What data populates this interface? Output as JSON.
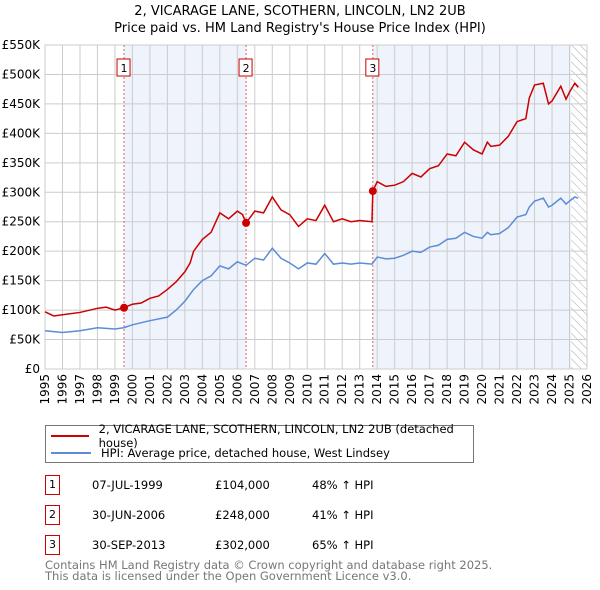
{
  "chart_data": {
    "type": "line",
    "title": "2, VICARAGE LANE, SCOTHERN, LINCOLN, LN2 2UB",
    "subtitle": "Price paid vs. HM Land Registry's House Price Index (HPI)",
    "xlim": [
      1995,
      2026
    ],
    "ylim": [
      0,
      550000
    ],
    "x_ticks": [
      "1995",
      "1996",
      "1997",
      "1998",
      "1999",
      "2000",
      "2001",
      "2002",
      "2003",
      "2004",
      "2005",
      "2006",
      "2007",
      "2008",
      "2009",
      "2010",
      "2011",
      "2012",
      "2013",
      "2014",
      "2015",
      "2016",
      "2017",
      "2018",
      "2019",
      "2020",
      "2021",
      "2022",
      "2023",
      "2024",
      "2025",
      "2026"
    ],
    "y_ticks": [
      {
        "v": 0,
        "l": "£0"
      },
      {
        "v": 50000,
        "l": "£50K"
      },
      {
        "v": 100000,
        "l": "£100K"
      },
      {
        "v": 150000,
        "l": "£150K"
      },
      {
        "v": 200000,
        "l": "£200K"
      },
      {
        "v": 250000,
        "l": "£250K"
      },
      {
        "v": 300000,
        "l": "£300K"
      },
      {
        "v": 350000,
        "l": "£350K"
      },
      {
        "v": 400000,
        "l": "£400K"
      },
      {
        "v": 450000,
        "l": "£450K"
      },
      {
        "v": 500000,
        "l": "£500K"
      },
      {
        "v": 550000,
        "l": "£550K"
      }
    ],
    "shaded_ranges": [
      [
        1999.52,
        2006.5
      ],
      [
        2013.75,
        2025.1
      ]
    ],
    "hatched_from": 2025.1,
    "series": [
      {
        "name": "2, VICARAGE LANE, SCOTHERN, LINCOLN, LN2 2UB (detached house)",
        "color": "#cc0000",
        "x": [
          1995,
          1995.5,
          1996,
          1997,
          1998,
          1998.5,
          1999,
          1999.52,
          2000,
          2000.5,
          2001,
          2001.5,
          2002,
          2002.5,
          2003,
          2003.3,
          2003.5,
          2004,
          2004.5,
          2005,
          2005.5,
          2006,
          2006.3,
          2006.5,
          2007,
          2007.5,
          2008,
          2008.5,
          2009,
          2009.5,
          2010,
          2010.5,
          2011,
          2011.5,
          2012,
          2012.5,
          2013,
          2013.7,
          2013.75,
          2014,
          2014.5,
          2015,
          2015.5,
          2016,
          2016.5,
          2017,
          2017.5,
          2018,
          2018.5,
          2019,
          2019.5,
          2020,
          2020.3,
          2020.5,
          2021,
          2021.5,
          2022,
          2022.5,
          2022.7,
          2023,
          2023.5,
          2023.8,
          2024,
          2024.5,
          2024.8,
          2025,
          2025.3,
          2025.5
        ],
        "y": [
          97000,
          90000,
          92000,
          96000,
          103000,
          105000,
          100000,
          104000,
          110000,
          112000,
          120000,
          124000,
          135000,
          148000,
          165000,
          180000,
          200000,
          220000,
          232000,
          265000,
          255000,
          268000,
          262000,
          248000,
          268000,
          265000,
          292000,
          270000,
          262000,
          242000,
          255000,
          252000,
          278000,
          250000,
          255000,
          250000,
          252000,
          250000,
          302000,
          318000,
          310000,
          312000,
          318000,
          332000,
          326000,
          340000,
          345000,
          365000,
          362000,
          385000,
          372000,
          365000,
          385000,
          378000,
          380000,
          395000,
          420000,
          425000,
          460000,
          482000,
          485000,
          450000,
          455000,
          480000,
          458000,
          470000,
          485000,
          478000
        ]
      },
      {
        "name": "HPI: Average price, detached house, West Lindsey",
        "color": "#5b8dd6",
        "x": [
          1995,
          1996,
          1997,
          1998,
          1999,
          1999.5,
          2000,
          2001,
          2002,
          2002.5,
          2003,
          2003.5,
          2004,
          2004.5,
          2005,
          2005.5,
          2006,
          2006.5,
          2007,
          2007.5,
          2008,
          2008.5,
          2009,
          2009.5,
          2010,
          2010.5,
          2011,
          2011.5,
          2012,
          2012.5,
          2013,
          2013.7,
          2014,
          2014.5,
          2015,
          2015.5,
          2016,
          2016.5,
          2017,
          2017.5,
          2018,
          2018.5,
          2019,
          2019.5,
          2020,
          2020.3,
          2020.5,
          2021,
          2021.5,
          2022,
          2022.5,
          2022.7,
          2023,
          2023.5,
          2023.8,
          2024,
          2024.5,
          2024.8,
          2025,
          2025.3,
          2025.5
        ],
        "y": [
          65000,
          62000,
          65000,
          70000,
          68000,
          70000,
          75000,
          82000,
          88000,
          100000,
          115000,
          135000,
          150000,
          158000,
          175000,
          170000,
          182000,
          176000,
          188000,
          185000,
          205000,
          188000,
          180000,
          170000,
          180000,
          178000,
          196000,
          178000,
          180000,
          178000,
          180000,
          178000,
          190000,
          187000,
          188000,
          193000,
          200000,
          198000,
          207000,
          210000,
          220000,
          222000,
          232000,
          225000,
          222000,
          232000,
          228000,
          230000,
          240000,
          258000,
          262000,
          275000,
          285000,
          290000,
          275000,
          278000,
          290000,
          280000,
          285000,
          292000,
          290000
        ]
      }
    ],
    "sales": [
      {
        "n": "1",
        "x": 1999.52,
        "y": 104000,
        "date": "07-JUL-1999",
        "price": "£104,000",
        "hpi": "48% ↑ HPI"
      },
      {
        "n": "2",
        "x": 2006.5,
        "y": 248000,
        "date": "30-JUN-2006",
        "price": "£248,000",
        "hpi": "41% ↑ HPI"
      },
      {
        "n": "3",
        "x": 2013.75,
        "y": 302000,
        "date": "30-SEP-2013",
        "price": "£302,000",
        "hpi": "65% ↑ HPI"
      }
    ]
  },
  "footer": {
    "line1": "Contains HM Land Registry data © Crown copyright and database right 2025.",
    "line2": "This data is licensed under the Open Government Licence v3.0."
  }
}
